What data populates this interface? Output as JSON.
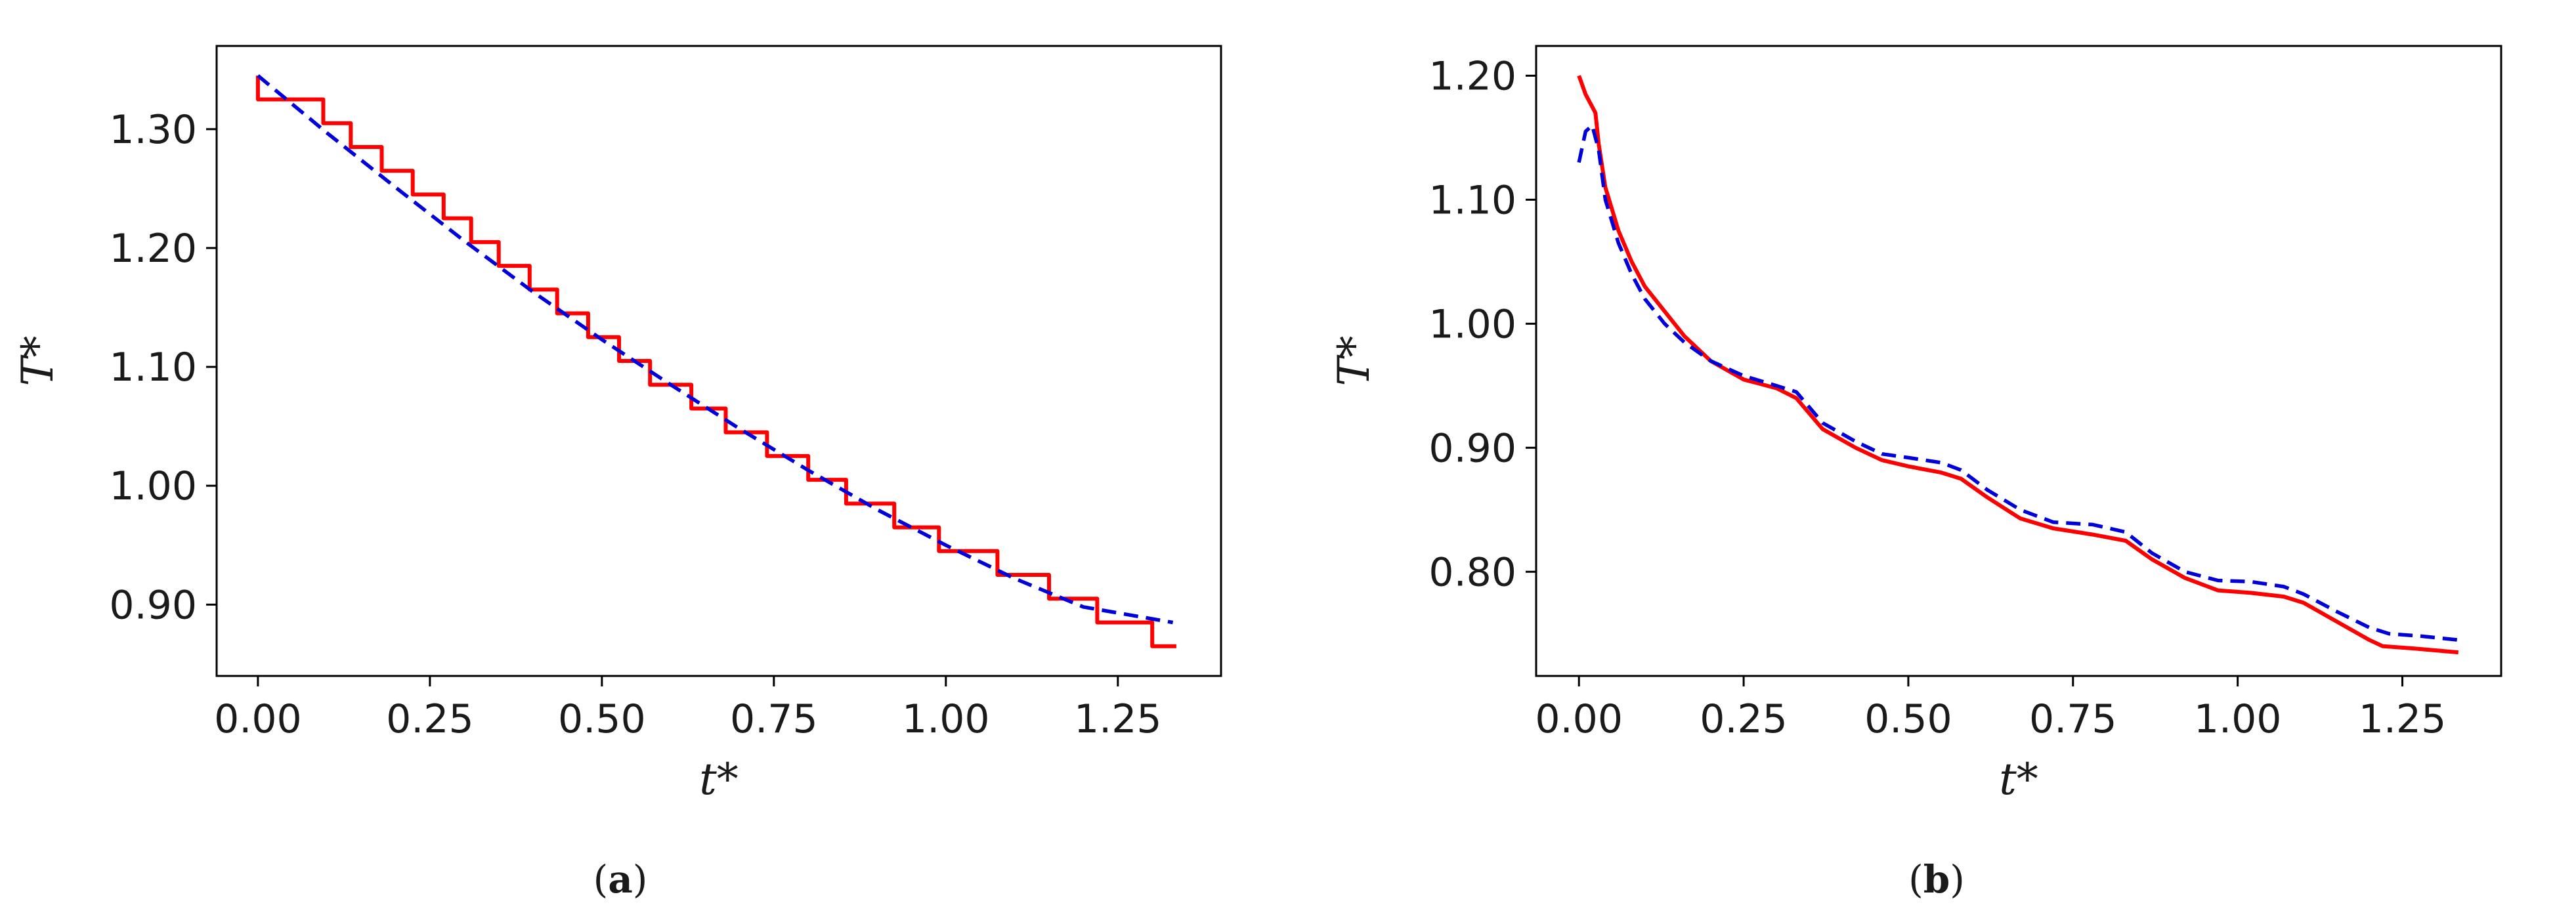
{
  "colors": {
    "measured": "#ff0000",
    "reference": "#0000dd",
    "axes": "#000000"
  },
  "chart_data": [
    {
      "panel": "a",
      "caption": "(a)",
      "type": "line",
      "xlabel": "t*",
      "ylabel": "T*",
      "xlim": [
        -0.06,
        1.4
      ],
      "ylim": [
        0.84,
        1.37
      ],
      "xticks": [
        0.0,
        0.25,
        0.5,
        0.75,
        1.0,
        1.25
      ],
      "xtick_labels": [
        "0.00",
        "0.25",
        "0.50",
        "0.75",
        "1.00",
        "1.25"
      ],
      "yticks": [
        0.9,
        1.0,
        1.1,
        1.2,
        1.3
      ],
      "ytick_labels": [
        "0.90",
        "1.00",
        "1.10",
        "1.20",
        "1.30"
      ],
      "grid": false,
      "series": [
        {
          "style": "solid",
          "color": "#ff0000",
          "step": true,
          "x": [
            0.0,
            0.0,
            0.095,
            0.095,
            0.135,
            0.135,
            0.18,
            0.18,
            0.225,
            0.225,
            0.27,
            0.27,
            0.31,
            0.31,
            0.35,
            0.35,
            0.395,
            0.395,
            0.435,
            0.435,
            0.48,
            0.48,
            0.525,
            0.525,
            0.57,
            0.57,
            0.63,
            0.63,
            0.68,
            0.68,
            0.74,
            0.74,
            0.8,
            0.8,
            0.855,
            0.855,
            0.925,
            0.925,
            0.99,
            0.99,
            1.075,
            1.075,
            1.15,
            1.15,
            1.22,
            1.22,
            1.3,
            1.3,
            1.335
          ],
          "y": [
            1.345,
            1.325,
            1.325,
            1.305,
            1.305,
            1.285,
            1.285,
            1.265,
            1.265,
            1.245,
            1.245,
            1.225,
            1.225,
            1.205,
            1.205,
            1.185,
            1.185,
            1.165,
            1.165,
            1.145,
            1.145,
            1.125,
            1.125,
            1.105,
            1.105,
            1.085,
            1.085,
            1.065,
            1.065,
            1.045,
            1.045,
            1.025,
            1.025,
            1.005,
            1.005,
            0.985,
            0.985,
            0.965,
            0.965,
            0.945,
            0.945,
            0.925,
            0.925,
            0.905,
            0.905,
            0.885,
            0.885,
            0.865,
            0.865
          ]
        },
        {
          "style": "dashed",
          "color": "#0000dd",
          "x": [
            0.0,
            0.1,
            0.2,
            0.3,
            0.4,
            0.5,
            0.6,
            0.7,
            0.8,
            0.9,
            1.0,
            1.1,
            1.2,
            1.33
          ],
          "y": [
            1.345,
            1.297,
            1.251,
            1.206,
            1.163,
            1.123,
            1.085,
            1.048,
            1.013,
            0.98,
            0.95,
            0.922,
            0.898,
            0.885
          ]
        }
      ]
    },
    {
      "panel": "b",
      "caption": "(b)",
      "type": "line",
      "xlabel": "t*",
      "ylabel": "T*",
      "xlim": [
        -0.065,
        1.4
      ],
      "ylim": [
        0.716,
        1.224
      ],
      "xticks": [
        0.0,
        0.25,
        0.5,
        0.75,
        1.0,
        1.25
      ],
      "xtick_labels": [
        "0.00",
        "0.25",
        "0.50",
        "0.75",
        "1.00",
        "1.25"
      ],
      "yticks": [
        0.8,
        0.9,
        1.0,
        1.1,
        1.2
      ],
      "ytick_labels": [
        "0.80",
        "0.90",
        "1.00",
        "1.10",
        "1.20"
      ],
      "grid": false,
      "series": [
        {
          "style": "solid",
          "color": "#ff0000",
          "x": [
            0.0,
            0.01,
            0.025,
            0.03,
            0.04,
            0.06,
            0.08,
            0.1,
            0.13,
            0.16,
            0.2,
            0.25,
            0.3,
            0.33,
            0.37,
            0.42,
            0.46,
            0.5,
            0.55,
            0.58,
            0.62,
            0.67,
            0.72,
            0.78,
            0.83,
            0.87,
            0.92,
            0.97,
            1.02,
            1.07,
            1.1,
            1.15,
            1.2,
            1.22,
            1.27,
            1.335
          ],
          "y": [
            1.2,
            1.185,
            1.17,
            1.145,
            1.11,
            1.075,
            1.05,
            1.03,
            1.01,
            0.99,
            0.97,
            0.955,
            0.948,
            0.94,
            0.915,
            0.9,
            0.89,
            0.885,
            0.88,
            0.875,
            0.86,
            0.843,
            0.835,
            0.83,
            0.825,
            0.81,
            0.795,
            0.785,
            0.783,
            0.78,
            0.775,
            0.76,
            0.745,
            0.74,
            0.738,
            0.735
          ]
        },
        {
          "style": "dashed",
          "color": "#0000dd",
          "x": [
            0.0,
            0.01,
            0.02,
            0.03,
            0.04,
            0.06,
            0.08,
            0.1,
            0.13,
            0.16,
            0.2,
            0.25,
            0.3,
            0.33,
            0.37,
            0.42,
            0.46,
            0.5,
            0.55,
            0.58,
            0.62,
            0.67,
            0.72,
            0.78,
            0.83,
            0.87,
            0.92,
            0.97,
            1.02,
            1.07,
            1.1,
            1.15,
            1.2,
            1.23,
            1.28,
            1.335
          ],
          "y": [
            1.13,
            1.155,
            1.16,
            1.14,
            1.1,
            1.065,
            1.04,
            1.02,
            1.0,
            0.985,
            0.97,
            0.958,
            0.95,
            0.945,
            0.92,
            0.905,
            0.895,
            0.892,
            0.888,
            0.882,
            0.866,
            0.85,
            0.84,
            0.838,
            0.832,
            0.815,
            0.8,
            0.793,
            0.792,
            0.788,
            0.782,
            0.768,
            0.755,
            0.75,
            0.748,
            0.745
          ]
        }
      ]
    }
  ]
}
